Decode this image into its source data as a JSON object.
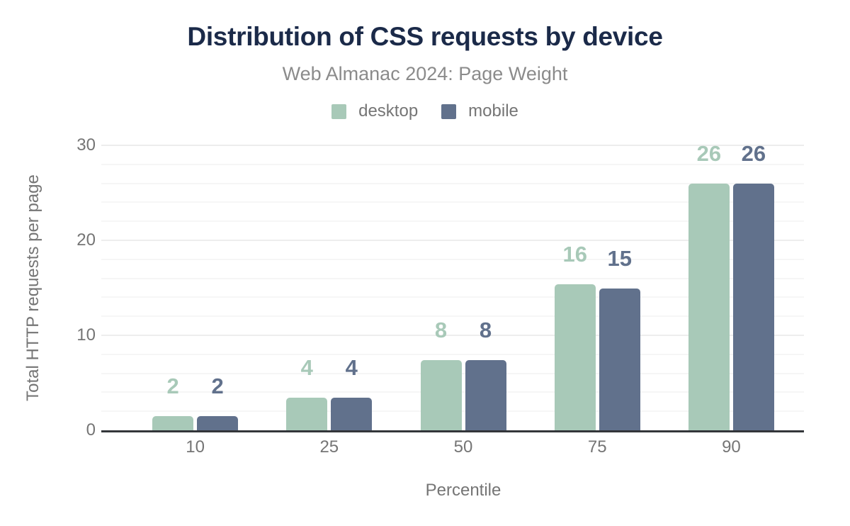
{
  "chart_data": {
    "type": "bar",
    "title": "Distribution of CSS requests by device",
    "subtitle": "Web Almanac 2024: Page Weight",
    "xlabel": "Percentile",
    "ylabel": "Total HTTP requests per page",
    "categories": [
      "10",
      "25",
      "50",
      "75",
      "90"
    ],
    "series": [
      {
        "name": "desktop",
        "color": "#a8c9b8",
        "values": [
          2,
          4,
          8,
          16,
          26
        ],
        "drawn_values": [
          1.5,
          3.4,
          7.4,
          15.4,
          26
        ],
        "labels": [
          "2",
          "4",
          "8",
          "16",
          "26"
        ]
      },
      {
        "name": "mobile",
        "color": "#61718c",
        "values": [
          2,
          4,
          8,
          15,
          26
        ],
        "drawn_values": [
          1.5,
          3.4,
          7.4,
          14.9,
          26
        ],
        "labels": [
          "2",
          "4",
          "8",
          "15",
          "26"
        ]
      }
    ],
    "ylim": [
      0,
      30
    ],
    "y_ticks": [
      0,
      10,
      20,
      30
    ],
    "grid": {
      "orientation": "horizontal",
      "minor_step": 2,
      "major_step": 10
    },
    "legend_position": "top"
  },
  "colors": {
    "title": "#1b2a49",
    "subtitle": "#8b8b8b",
    "axis_text": "#757575",
    "axis_line": "#33363a",
    "grid_minor": "#f6f6f6",
    "grid_major": "#ededed",
    "background": "#ffffff"
  }
}
